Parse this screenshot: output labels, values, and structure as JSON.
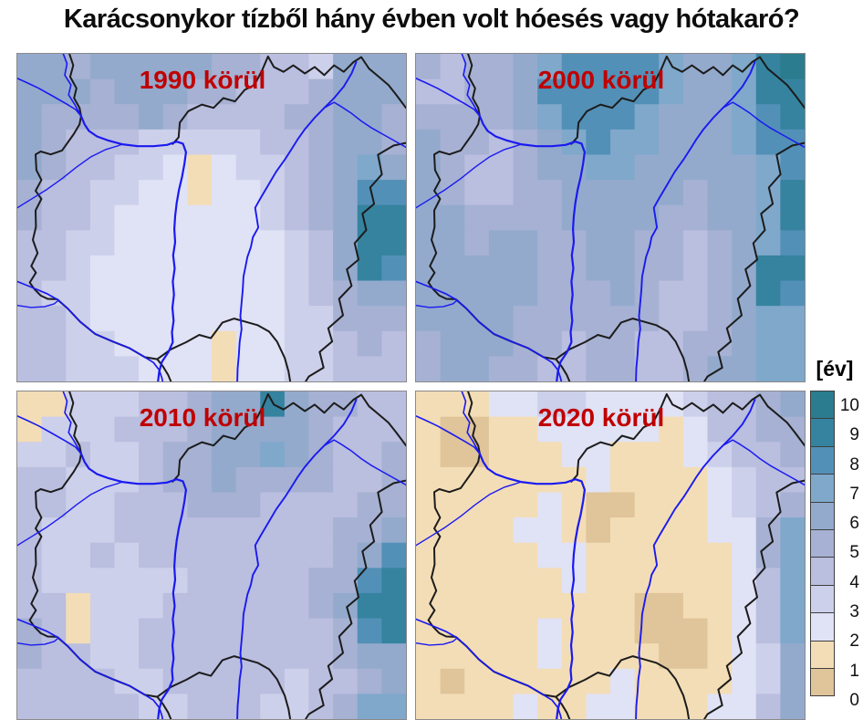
{
  "title": "Karácsonykor tízből hány évben volt hóesés vagy hótakaró?",
  "colors": {
    "label_red": "#c00000",
    "border_black": "#1c1c1c",
    "river_blue": "#1a1af0",
    "panel_frame": "#8a8a8a"
  },
  "legend": {
    "title": "[év]",
    "entries": [
      {
        "value": "10",
        "color": "#2b7c8e"
      },
      {
        "value": "9",
        "color": "#35839f"
      },
      {
        "value": "8",
        "color": "#5390b7"
      },
      {
        "value": "7",
        "color": "#7fa8cb"
      },
      {
        "value": "6",
        "color": "#93aacd"
      },
      {
        "value": "5",
        "color": "#a6b1d3"
      },
      {
        "value": "4",
        "color": "#babedf"
      },
      {
        "value": "3",
        "color": "#cdd0ea"
      },
      {
        "value": "2",
        "color": "#e0e2f5"
      },
      {
        "value": "1",
        "color": "#f3ddb6"
      },
      {
        "value": "0",
        "color": "#e0c49a"
      }
    ]
  },
  "panels": [
    {
      "id": "1990",
      "label": "1990 körül",
      "grid": [
        "6656666655443666",
        "6665666554445666",
        "6555565444455665",
        "6544433333445665",
        "6544332123345676",
        "5443322122345688",
        "5443222222345699",
        "4433222222234699",
        "4432222222234698",
        "4332222222234566",
        "4432222222233555",
        "4433222212233454",
        "4433322212233444"
      ]
    },
    {
      "id": "2000",
      "label": "2000 körül",
      "grid": [
        "545567888876679a",
        "4455688888766799",
        "5555678887666789",
        "6554567877666788",
        "6544566776666678",
        "6544556666656679",
        "6655556666556679",
        "6656655665545678",
        "6666655665545699",
        "6666655565445698",
        "6666555555445677",
        "5666554554455677",
        "5665544554456677"
      ]
    },
    {
      "id": "2010",
      "label": "2010 körül",
      "grid": [
        "1133344566965544",
        "1333444566665444",
        "3343345566765445",
        "4433345565555445",
        "4433444555444455",
        "4333444444444556",
        "4334344444444568",
        "4333333444445589",
        "4413334444445699",
        "5413344444444589",
        "5443344444444566",
        "4444334444434456",
        "4444433444334577"
      ]
    },
    {
      "id": "2020",
      "label": "2020 körül",
      "grid": [
        "1112233222234456",
        "1001122222124455",
        "1001112211123445",
        "1111111211112344",
        "1111121001112345",
        "1111221011112257",
        "1111122111111257",
        "1111112111111247",
        "1111111110011247",
        "1111121110001247",
        "1111121111001236",
        "1011111121111236",
        "1111211221112246"
      ]
    }
  ],
  "map_geometry": {
    "border_segments": [
      [
        [
          13.4,
          0
        ],
        [
          14.4,
          3.5
        ],
        [
          13.6,
          7
        ],
        [
          15.2,
          10.5
        ],
        [
          14.6,
          13.5
        ],
        [
          16,
          16.5
        ],
        [
          16.4,
          19
        ]
      ],
      [
        [
          16.4,
          19
        ],
        [
          16,
          21.5
        ],
        [
          14.5,
          24.5
        ],
        [
          11.5,
          29.5
        ],
        [
          8.6,
          30.7
        ],
        [
          6,
          29.8
        ],
        [
          4.7,
          30.7
        ],
        [
          4.9,
          35.5
        ],
        [
          6.2,
          38.5
        ],
        [
          4.7,
          41.8
        ],
        [
          6.2,
          44.3
        ],
        [
          4.7,
          47.8
        ],
        [
          4.8,
          52.8
        ],
        [
          4,
          56.8
        ],
        [
          5.2,
          60.8
        ],
        [
          3.6,
          64.8
        ],
        [
          4.8,
          66.8
        ],
        [
          3.2,
          69.8
        ],
        [
          4.4,
          71.8
        ],
        [
          6,
          73.8
        ],
        [
          7.8,
          74.8
        ],
        [
          10.2,
          74.9
        ],
        [
          13,
          77.8
        ],
        [
          16.2,
          81.8
        ],
        [
          20,
          85.5
        ],
        [
          24.5,
          87.8
        ],
        [
          28.8,
          89.8
        ],
        [
          32.8,
          92.6
        ],
        [
          36,
          93.2
        ],
        [
          39.5,
          90.2
        ],
        [
          43.5,
          88
        ],
        [
          46.8,
          85.8
        ],
        [
          49.8,
          86.8
        ],
        [
          52.8,
          82
        ],
        [
          55.8,
          80.8
        ],
        [
          58.8,
          81.8
        ],
        [
          61.8,
          82.8
        ],
        [
          64.8,
          84.8
        ],
        [
          66.8,
          87.8
        ],
        [
          68.8,
          92.8
        ],
        [
          69.8,
          97
        ],
        [
          70.2,
          100
        ]
      ],
      [
        [
          36,
          93.2
        ],
        [
          37.5,
          95.5
        ],
        [
          38.8,
          98
        ],
        [
          39.5,
          100
        ]
      ],
      [
        [
          40,
          27.5
        ],
        [
          41.5,
          25.5
        ],
        [
          41.8,
          21
        ],
        [
          44,
          17.5
        ],
        [
          47.5,
          15.5
        ],
        [
          50.5,
          16.5
        ],
        [
          53,
          13.5
        ],
        [
          56,
          14.5
        ],
        [
          58.5,
          11
        ],
        [
          61,
          9.5
        ],
        [
          63,
          5
        ],
        [
          64.5,
          0.8
        ],
        [
          66,
          4
        ],
        [
          68.5,
          5.5
        ],
        [
          71,
          3.5
        ],
        [
          74,
          6
        ],
        [
          76.5,
          4
        ],
        [
          79,
          6.5
        ],
        [
          81.5,
          3.5
        ],
        [
          84,
          5.5
        ],
        [
          86.5,
          2.5
        ],
        [
          88.5,
          1
        ],
        [
          90.5,
          4.5
        ],
        [
          93,
          7
        ],
        [
          95.5,
          9.5
        ],
        [
          97.5,
          12.5
        ],
        [
          100,
          16.5
        ]
      ],
      [
        [
          74.2,
          100
        ],
        [
          75,
          98.5
        ],
        [
          78.8,
          95.8
        ],
        [
          77.8,
          91
        ],
        [
          81,
          87.8
        ],
        [
          80,
          83.8
        ],
        [
          83.8,
          79.8
        ],
        [
          82.8,
          74.8
        ],
        [
          86,
          70.8
        ],
        [
          84.8,
          65.8
        ],
        [
          87.8,
          62.8
        ],
        [
          86.8,
          57.8
        ],
        [
          89.8,
          53.8
        ],
        [
          88.8,
          48.8
        ],
        [
          91.8,
          45.8
        ],
        [
          90.8,
          40.8
        ],
        [
          93.8,
          36.8
        ],
        [
          92.8,
          30.8
        ],
        [
          96.8,
          28
        ],
        [
          100,
          27.2
        ]
      ]
    ],
    "rivers": [
      {
        "name": "danube-upper",
        "width": 1.6,
        "points": [
          [
            0,
            7.5
          ],
          [
            2.5,
            8.8
          ],
          [
            5.5,
            10.5
          ],
          [
            9,
            12.8
          ],
          [
            12.5,
            15.2
          ],
          [
            15,
            17
          ],
          [
            16.4,
            19
          ]
        ]
      },
      {
        "name": "morava",
        "width": 1.6,
        "points": [
          [
            11.8,
            0
          ],
          [
            12.8,
            3
          ],
          [
            12.2,
            6.5
          ],
          [
            13.8,
            9.5
          ],
          [
            13.2,
            12.5
          ],
          [
            14.8,
            15.5
          ],
          [
            16.4,
            19
          ]
        ]
      },
      {
        "name": "danube",
        "width": 2.2,
        "points": [
          [
            16.4,
            19
          ],
          [
            17.3,
            21.5
          ],
          [
            18.4,
            23.5
          ],
          [
            20.5,
            25.2
          ],
          [
            23.5,
            26.5
          ],
          [
            27,
            27.6
          ],
          [
            31,
            28.2
          ],
          [
            35,
            28.2
          ],
          [
            38.5,
            27.8
          ],
          [
            41,
            26.8
          ],
          [
            42.6,
            27.4
          ],
          [
            43.4,
            30
          ],
          [
            43,
            33.5
          ],
          [
            42.4,
            37.5
          ],
          [
            41.6,
            41.5
          ],
          [
            41,
            45.5
          ],
          [
            40.6,
            49.5
          ],
          [
            40.4,
            53.5
          ],
          [
            40.6,
            57.5
          ],
          [
            40.1,
            61.5
          ],
          [
            40.5,
            65.5
          ],
          [
            40,
            69.5
          ],
          [
            40.3,
            73.5
          ],
          [
            39.9,
            77.5
          ],
          [
            40.2,
            81.5
          ],
          [
            39.8,
            85
          ],
          [
            40,
            88
          ],
          [
            38.9,
            91
          ],
          [
            37.2,
            94
          ],
          [
            36.5,
            97
          ],
          [
            36.2,
            100
          ]
        ]
      },
      {
        "name": "tisza",
        "width": 1.9,
        "points": [
          [
            87.2,
            2.5
          ],
          [
            86,
            6
          ],
          [
            84,
            10
          ],
          [
            81.5,
            13.5
          ],
          [
            79,
            16.5
          ],
          [
            76.5,
            19.5
          ],
          [
            74,
            23
          ],
          [
            72.2,
            26
          ],
          [
            70.6,
            29
          ],
          [
            69,
            32
          ],
          [
            66.6,
            36
          ],
          [
            64.6,
            40
          ],
          [
            62.6,
            44
          ],
          [
            61.2,
            47
          ],
          [
            61.6,
            50
          ],
          [
            62,
            53
          ],
          [
            60.6,
            56
          ],
          [
            60.1,
            59
          ],
          [
            59.2,
            62
          ],
          [
            58.7,
            65
          ],
          [
            58.2,
            68
          ],
          [
            58,
            72
          ],
          [
            57.7,
            76
          ],
          [
            57.4,
            80
          ],
          [
            57.7,
            84
          ],
          [
            57.2,
            88
          ],
          [
            57,
            92
          ],
          [
            56.7,
            96
          ],
          [
            56.6,
            100
          ]
        ]
      },
      {
        "name": "bodrog",
        "width": 1.5,
        "points": [
          [
            100,
            28.5
          ],
          [
            97,
            26.5
          ],
          [
            94,
            24.5
          ],
          [
            91,
            22.5
          ],
          [
            88.5,
            20.5
          ],
          [
            86,
            18.2
          ],
          [
            83.5,
            16.2
          ],
          [
            81.5,
            14.8
          ],
          [
            79,
            16.5
          ]
        ]
      },
      {
        "name": "raba",
        "width": 1.4,
        "points": [
          [
            0,
            47
          ],
          [
            3.8,
            44.2
          ],
          [
            7.6,
            41.4
          ],
          [
            11.4,
            38.2
          ],
          [
            15.2,
            34.6
          ],
          [
            19,
            31.4
          ],
          [
            22.8,
            29.2
          ],
          [
            25.8,
            28.1
          ],
          [
            27,
            27.6
          ]
        ]
      },
      {
        "name": "drava",
        "width": 1.7,
        "points": [
          [
            0,
            69.5
          ],
          [
            3.8,
            71.3
          ],
          [
            7.6,
            73.2
          ],
          [
            10.6,
            75.2
          ],
          [
            13,
            77.8
          ],
          [
            16.2,
            81.8
          ],
          [
            20,
            85.5
          ],
          [
            24.5,
            87.8
          ],
          [
            28.8,
            89.8
          ],
          [
            32.8,
            92.6
          ],
          [
            35,
            94.2
          ],
          [
            36.5,
            96.5
          ],
          [
            37.2,
            99
          ],
          [
            37.4,
            100
          ]
        ]
      },
      {
        "name": "mura",
        "width": 1.4,
        "points": [
          [
            0,
            76.8
          ],
          [
            3.5,
            77.4
          ],
          [
            7,
            77.2
          ],
          [
            9.5,
            76.3
          ],
          [
            10.6,
            75.2
          ]
        ]
      }
    ]
  }
}
